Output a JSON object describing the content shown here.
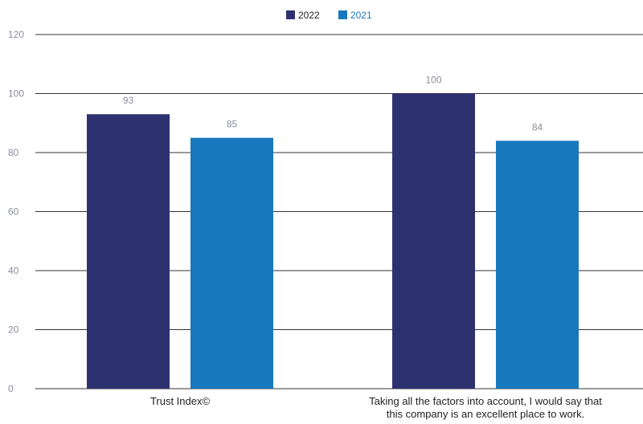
{
  "chart_data": {
    "type": "bar",
    "categories": [
      [
        "Trust Index©"
      ],
      [
        "Taking all the factors into account, I would say that",
        "this company is an excellent place to work."
      ]
    ],
    "series": [
      {
        "name": "2022",
        "values": [
          93,
          100
        ],
        "color": "#2e3170"
      },
      {
        "name": "2021",
        "values": [
          85,
          84
        ],
        "color": "#1878be"
      }
    ],
    "yticks": [
      0,
      20,
      40,
      60,
      80,
      100,
      120
    ],
    "ylim": [
      0,
      120
    ],
    "grid": true,
    "legend_position": "top-center",
    "title": "",
    "xlabel": "",
    "ylabel": ""
  }
}
